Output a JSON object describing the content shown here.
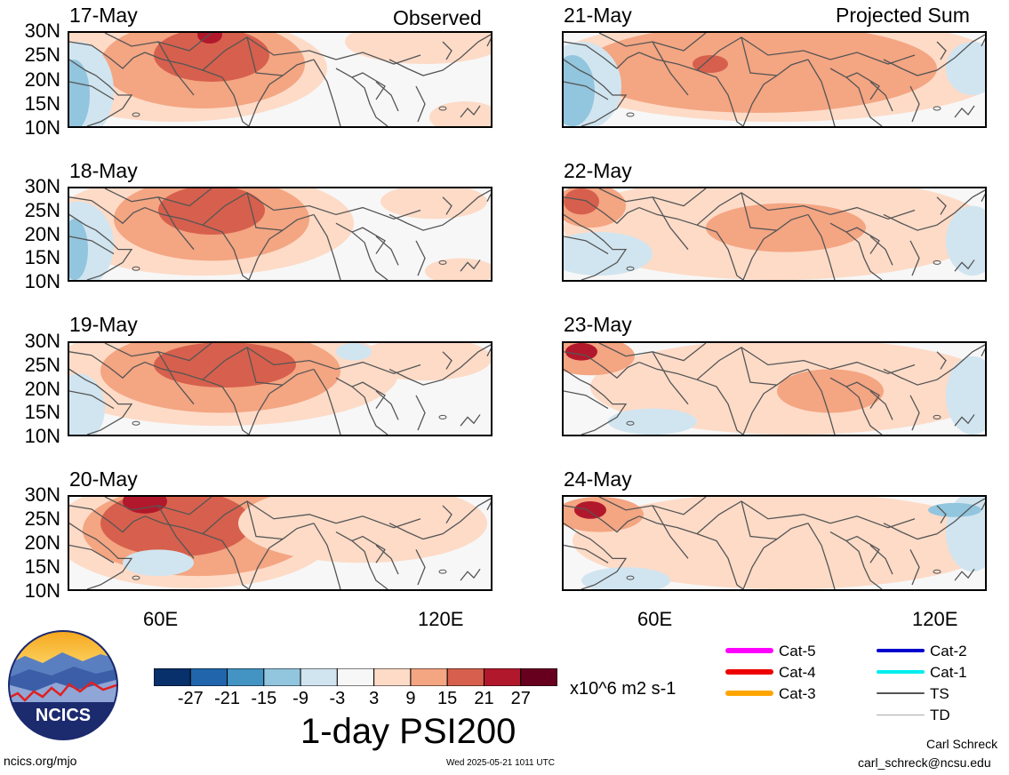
{
  "panels": {
    "observed_label": "Observed",
    "projected_label": "Projected Sum",
    "left_dates": [
      "17-May",
      "18-May",
      "19-May",
      "20-May"
    ],
    "right_dates": [
      "21-May",
      "22-May",
      "23-May",
      "24-May"
    ],
    "lat_labels": [
      "30N",
      "25N",
      "20N",
      "15N",
      "10N"
    ],
    "lon_labels": [
      "60E",
      "120E"
    ]
  },
  "colorbar": {
    "tick_labels": [
      "-27",
      "-21",
      "-15",
      "-9",
      "-3",
      "3",
      "9",
      "15",
      "21",
      "27"
    ],
    "colors": [
      "#08306b",
      "#2166ac",
      "#4393c3",
      "#92c5de",
      "#d1e5f0",
      "#f7f7f7",
      "#fddbc7",
      "#f4a582",
      "#d6604d",
      "#b2182b",
      "#67001f"
    ],
    "units": "x10^6 m2 s-1",
    "title": "1-day PSI200"
  },
  "legend": [
    {
      "label": "Cat-5",
      "color": "#ff00ff"
    },
    {
      "label": "Cat-4",
      "color": "#ee0000"
    },
    {
      "label": "Cat-3",
      "color": "#ffa500"
    },
    {
      "label": "Cat-2",
      "color": "#0000cc"
    },
    {
      "label": "Cat-1",
      "color": "#00eeee"
    },
    {
      "label": "TS",
      "color": "#555555"
    },
    {
      "label": "TD",
      "color": "#aaaaaa"
    }
  ],
  "logo": {
    "text": "NCICS"
  },
  "footer": {
    "url": "ncics.org/mjo",
    "timestamp": "Wed 2025-05-21 1011 UTC",
    "author": "Carl Schreck",
    "email": "carl_schreck@ncsu.edu"
  }
}
